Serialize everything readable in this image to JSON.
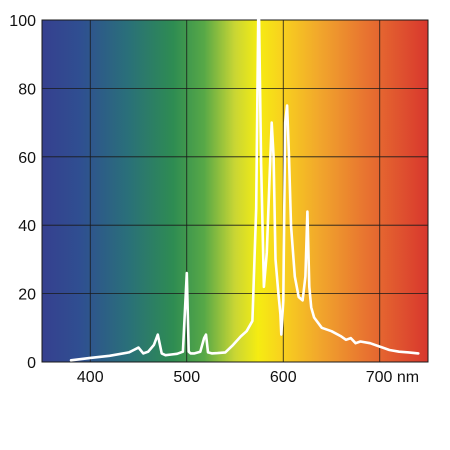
{
  "chart_data": {
    "type": "line",
    "title": "",
    "xlabel": "",
    "ylabel": "",
    "xlim": [
      350,
      750
    ],
    "ylim": [
      0,
      100
    ],
    "grid": true,
    "background": "visible-spectrum-gradient",
    "line_color": "#ffffff",
    "x_ticks": [
      {
        "value": 400,
        "label": "400"
      },
      {
        "value": 500,
        "label": "500"
      },
      {
        "value": 600,
        "label": "600"
      },
      {
        "value": 700,
        "label": "700 nm"
      }
    ],
    "y_ticks": [
      {
        "value": 0,
        "label": "0"
      },
      {
        "value": 20,
        "label": "20"
      },
      {
        "value": 40,
        "label": "40"
      },
      {
        "value": 60,
        "label": "60"
      },
      {
        "value": 80,
        "label": "80"
      },
      {
        "value": 100,
        "label": "100"
      }
    ],
    "series": [
      {
        "x": [
          380,
          400,
          420,
          440,
          445,
          450,
          455,
          460,
          466,
          470,
          474,
          478,
          484,
          490,
          496,
          500,
          502,
          504,
          508,
          514,
          518,
          520,
          522,
          526,
          532,
          540,
          548,
          556,
          562,
          568,
          572,
          574,
          575,
          577,
          580,
          583,
          586,
          588,
          590,
          592,
          595,
          597,
          598,
          600,
          602,
          604,
          606,
          608,
          612,
          616,
          620,
          623,
          625,
          627,
          629,
          632,
          640,
          650,
          660,
          665,
          670,
          675,
          680,
          690,
          700,
          710,
          720,
          730,
          740
        ],
        "y": [
          0.5,
          1.2,
          1.8,
          2.8,
          3.5,
          4.2,
          2.5,
          3.0,
          5.0,
          8.0,
          2.5,
          2.0,
          2.2,
          2.4,
          3.0,
          26.0,
          3.0,
          2.5,
          2.5,
          3.0,
          7.0,
          8.0,
          2.8,
          2.5,
          2.6,
          2.8,
          5.0,
          7.5,
          9.0,
          12.0,
          45.0,
          100.0,
          100.0,
          58.0,
          22.0,
          32.0,
          55.0,
          70.0,
          60.0,
          30.0,
          20.0,
          14.0,
          8.0,
          18.0,
          70.0,
          75.0,
          60.0,
          40.0,
          25.0,
          19.0,
          18.0,
          25.0,
          44.0,
          22.0,
          16.0,
          13.0,
          10.0,
          9.0,
          7.5,
          6.5,
          7.0,
          5.5,
          6.0,
          5.5,
          4.5,
          3.5,
          3.0,
          2.8,
          2.5
        ]
      }
    ]
  }
}
